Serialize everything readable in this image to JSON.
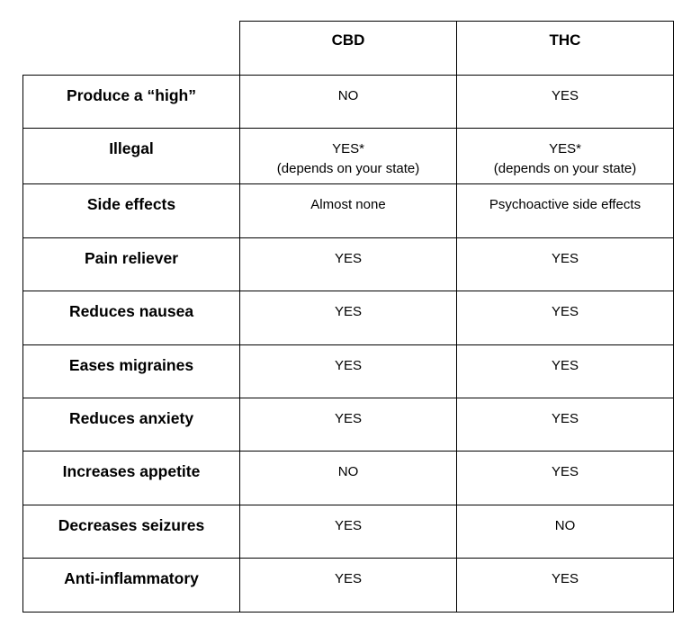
{
  "top_text": "                    ",
  "header": {
    "col1": "",
    "col2": "CBD",
    "col3": "THC"
  },
  "rows": [
    {
      "label": "Produce a “high”",
      "cbd": "NO",
      "thc": "YES"
    },
    {
      "label": "Illegal",
      "cbd": "YES*",
      "cbd_note": "(depends on your state)",
      "thc": "YES*",
      "thc_note": "(depends on your state)"
    },
    {
      "label": "Side effects",
      "cbd": "Almost none",
      "thc": "Psychoactive side effects"
    },
    {
      "label": "Pain reliever",
      "cbd": "YES",
      "thc": "YES"
    },
    {
      "label": "Reduces nausea",
      "cbd": "YES",
      "thc": "YES"
    },
    {
      "label": "Eases migraines",
      "cbd": "YES",
      "thc": "YES"
    },
    {
      "label": "Reduces anxiety",
      "cbd": "YES",
      "thc": "YES"
    },
    {
      "label": "Increases appetite",
      "cbd": "NO",
      "thc": "YES"
    },
    {
      "label": "Decreases seizures",
      "cbd": "YES",
      "thc": "NO"
    },
    {
      "label": "Anti-inflammatory",
      "cbd": "YES",
      "thc": "YES"
    }
  ]
}
